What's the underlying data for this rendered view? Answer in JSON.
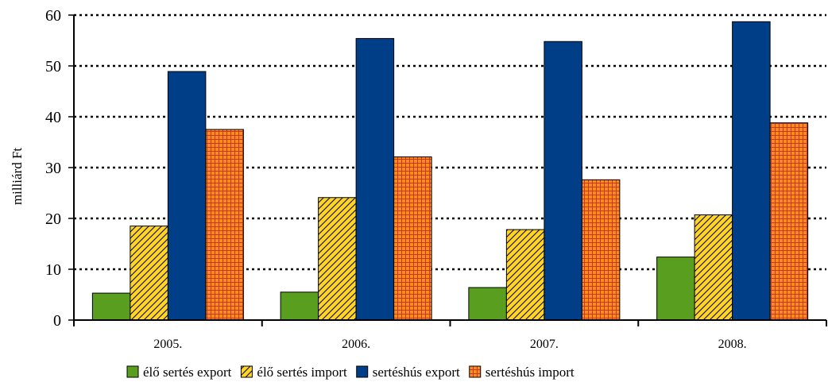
{
  "chart_data": {
    "type": "bar",
    "categories": [
      "2005.",
      "2006.",
      "2007.",
      "2008."
    ],
    "series": [
      {
        "name": "élő sertés export",
        "values": [
          5.3,
          5.5,
          6.4,
          12.4
        ],
        "color": "#5a9e1f",
        "pattern": "solid"
      },
      {
        "name": "élő sertés import",
        "values": [
          18.5,
          24.1,
          17.8,
          20.7
        ],
        "color": "#ffd42a",
        "pattern": "diagonal-hatch"
      },
      {
        "name": "sertéshús export",
        "values": [
          48.9,
          55.4,
          54.8,
          58.7
        ],
        "color": "#003f87",
        "pattern": "solid"
      },
      {
        "name": "sertéshús import",
        "values": [
          37.5,
          32.1,
          27.6,
          38.8
        ],
        "color": "#ff8c1a",
        "pattern": "grid-hatch"
      }
    ],
    "ylabel": "milliárd Ft",
    "xlabel": "",
    "title": "",
    "ylim": [
      0,
      60
    ],
    "yticks": [
      0,
      10,
      20,
      30,
      40,
      50,
      60
    ],
    "grid": "dotted-horizontal",
    "legend_position": "bottom"
  }
}
